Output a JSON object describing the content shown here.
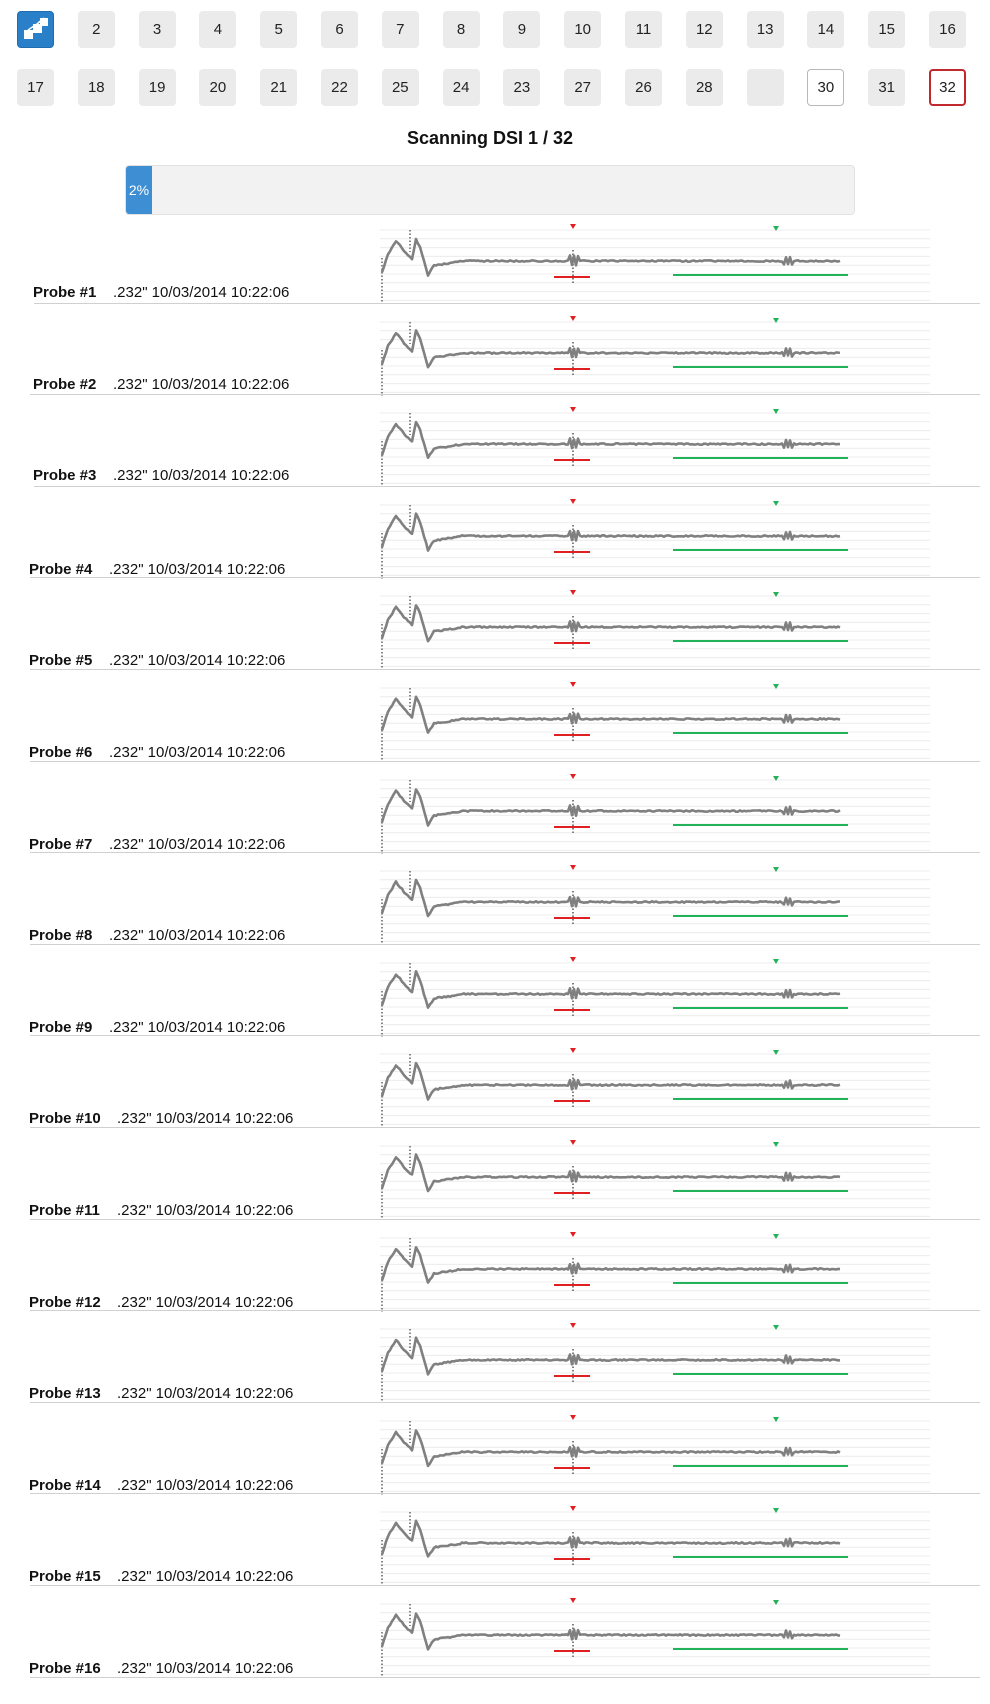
{
  "channels": {
    "row1": [
      "",
      "2",
      "3",
      "4",
      "5",
      "6",
      "7",
      "8",
      "9",
      "10",
      "11",
      "12",
      "13",
      "14",
      "15",
      "16"
    ],
    "row2": [
      "17",
      "18",
      "19",
      "20",
      "21",
      "22",
      "25",
      "24",
      "23",
      "27",
      "26",
      "28",
      "",
      "30",
      "31",
      "32"
    ],
    "first_icon": "cube-network-icon",
    "selected": "32",
    "outlined": "30"
  },
  "scan": {
    "title": "Scanning DSI 1 / 32",
    "progress_percent": 2,
    "progress_text": "2%"
  },
  "colors": {
    "accent": "#2a7fc9",
    "progress": "#3e8ed3",
    "selected_border": "#c0282d",
    "trace": "#808080",
    "marker_red": "#e02020",
    "marker_green": "#21b35a"
  },
  "probes": [
    {
      "label": "Probe #1",
      "info": ".232\" 10/03/2014 10:22:06"
    },
    {
      "label": "Probe #2",
      "info": ".232\" 10/03/2014 10:22:06"
    },
    {
      "label": "Probe #3",
      "info": ".232\" 10/03/2014 10:22:06"
    },
    {
      "label": "Probe #4",
      "info": ".232\" 10/03/2014 10:22:06"
    },
    {
      "label": "Probe #5",
      "info": ".232\" 10/03/2014 10:22:06"
    },
    {
      "label": "Probe #6",
      "info": ".232\" 10/03/2014 10:22:06"
    },
    {
      "label": "Probe #7",
      "info": ".232\" 10/03/2014 10:22:06"
    },
    {
      "label": "Probe #8",
      "info": ".232\" 10/03/2014 10:22:06"
    },
    {
      "label": "Probe #9",
      "info": ".232\" 10/03/2014 10:22:06"
    },
    {
      "label": "Probe #10",
      "info": ".232\" 10/03/2014 10:22:06"
    },
    {
      "label": "Probe #11",
      "info": ".232\" 10/03/2014 10:22:06"
    },
    {
      "label": "Probe #12",
      "info": ".232\" 10/03/2014 10:22:06"
    },
    {
      "label": "Probe #13",
      "info": ".232\" 10/03/2014 10:22:06"
    },
    {
      "label": "Probe #14",
      "info": ".232\" 10/03/2014 10:22:06"
    },
    {
      "label": "Probe #15",
      "info": ".232\" 10/03/2014 10:22:06"
    },
    {
      "label": "Probe #16",
      "info": ".232\" 10/03/2014 10:22:06"
    }
  ]
}
